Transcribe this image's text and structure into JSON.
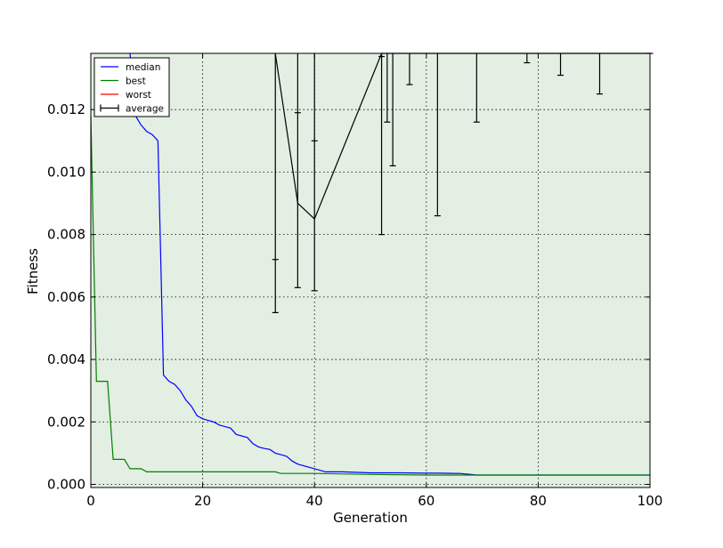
{
  "chart_data": {
    "type": "line",
    "title": "",
    "xlabel": "Generation",
    "ylabel": "Fitness",
    "xlim": [
      0,
      100
    ],
    "ylim": [
      -0.0001,
      0.0138
    ],
    "x_ticks": [
      0,
      20,
      40,
      60,
      80,
      100
    ],
    "x_tick_labels": [
      "0",
      "20",
      "40",
      "60",
      "80",
      "100"
    ],
    "y_ticks": [
      0.0,
      0.002,
      0.004,
      0.006,
      0.008,
      0.01,
      0.012
    ],
    "y_tick_labels": [
      "0.000",
      "0.002",
      "0.004",
      "0.006",
      "0.008",
      "0.010",
      "0.012"
    ],
    "grid": true,
    "legend_position": "top-left",
    "fill_color": "#e2efe2",
    "series": [
      {
        "name": "median",
        "color": "#0000ff",
        "x": [
          7,
          8,
          9,
          10,
          11,
          12,
          13,
          14,
          15,
          16,
          17,
          18,
          19,
          20,
          22,
          23,
          25,
          26,
          28,
          29,
          30,
          31,
          32,
          33,
          34,
          35,
          36,
          37,
          38,
          40,
          42,
          45,
          50,
          55,
          60,
          62,
          66,
          68,
          69,
          70,
          80,
          100
        ],
        "y": [
          0.0138,
          0.0118,
          0.0115,
          0.0113,
          0.0112,
          0.011,
          0.0035,
          0.0033,
          0.0032,
          0.003,
          0.0027,
          0.0025,
          0.0022,
          0.0021,
          0.002,
          0.0019,
          0.0018,
          0.0016,
          0.0015,
          0.0013,
          0.0012,
          0.00115,
          0.00112,
          0.001,
          0.00095,
          0.0009,
          0.00075,
          0.00065,
          0.0006,
          0.0005,
          0.0004,
          0.0004,
          0.00037,
          0.00037,
          0.00036,
          0.00036,
          0.00035,
          0.00032,
          0.0003,
          0.0003,
          0.0003,
          0.0003
        ]
      },
      {
        "name": "best",
        "color": "#008000",
        "x": [
          0,
          1,
          2,
          3,
          4,
          5,
          6,
          7,
          8,
          9,
          10,
          12,
          20,
          30,
          33,
          34,
          36,
          40,
          50,
          60,
          70,
          80,
          100
        ],
        "y": [
          0.0118,
          0.0033,
          0.0033,
          0.0033,
          0.0008,
          0.0008,
          0.0008,
          0.0005,
          0.0005,
          0.0005,
          0.0004,
          0.0004,
          0.0004,
          0.0004,
          0.0004,
          0.00035,
          0.00035,
          0.00035,
          0.00032,
          0.0003,
          0.0003,
          0.0003,
          0.0003
        ]
      },
      {
        "name": "worst",
        "color": "#ff0000",
        "x": [],
        "y": []
      }
    ],
    "average": {
      "name": "average",
      "color": "#000000",
      "x": [
        33,
        37,
        40,
        52,
        53,
        54,
        57,
        62,
        69,
        78,
        84,
        91,
        100
      ],
      "mean": [
        0.0138,
        0.009,
        0.0085,
        0.0138,
        0.0138,
        0.0138,
        0.0138,
        0.0138,
        0.0138,
        0.0138,
        0.0138,
        0.0138,
        0.0138
      ],
      "lower": [
        0.0055,
        0.0063,
        0.0062,
        0.008,
        0.0116,
        0.0102,
        0.0128,
        0.0086,
        0.0116,
        0.0135,
        0.0131,
        0.0125,
        0.0138
      ],
      "upper": [
        0.0072,
        0.0119,
        0.011,
        0.0137,
        0.0138,
        0.0138,
        0.0138,
        0.0138,
        0.0138,
        0.0138,
        0.0138,
        0.0138,
        0.0138
      ]
    }
  }
}
